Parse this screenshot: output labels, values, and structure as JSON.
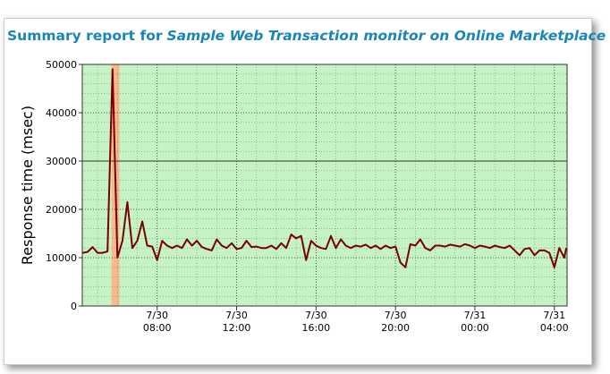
{
  "chart_data": {
    "type": "line",
    "title": [
      "Summary report for",
      "Sample Web Transaction monitor on Online Marketplace"
    ],
    "y_label": "Response time (msec)",
    "x": [
      4.25,
      4.5,
      4.75,
      5,
      5.25,
      5.5,
      5.75,
      6,
      6.25,
      6.5,
      6.75,
      7,
      7.25,
      7.5,
      7.75,
      8,
      8.25,
      8.5,
      8.75,
      9,
      9.25,
      9.5,
      9.75,
      10,
      10.25,
      10.5,
      10.75,
      11,
      11.25,
      11.5,
      11.75,
      12,
      12.25,
      12.5,
      12.75,
      13,
      13.25,
      13.5,
      13.75,
      14,
      14.25,
      14.5,
      14.75,
      15,
      15.25,
      15.5,
      15.75,
      16,
      16.25,
      16.5,
      16.75,
      17,
      17.25,
      17.5,
      17.75,
      18,
      18.25,
      18.5,
      18.75,
      19,
      19.25,
      19.5,
      19.75,
      20,
      20.25,
      20.5,
      20.75,
      21,
      21.25,
      21.5,
      21.75,
      22,
      22.25,
      22.5,
      22.75,
      23,
      23.25,
      23.5,
      23.75,
      24,
      24.25,
      24.5,
      24.75,
      25,
      25.25,
      25.5,
      25.75,
      26,
      26.25,
      26.5,
      26.75,
      27,
      27.25,
      27.5,
      27.75,
      28,
      28.25,
      28.5,
      28.6
    ],
    "series": [
      {
        "color": "#7a0000",
        "values": [
          11000,
          11200,
          12200,
          11000,
          11000,
          11300,
          49000,
          10000,
          13500,
          21500,
          12000,
          13500,
          17500,
          12500,
          12300,
          9500,
          13500,
          12500,
          12000,
          12500,
          12000,
          13800,
          12500,
          13500,
          12200,
          11800,
          11500,
          13800,
          12500,
          12000,
          13000,
          11800,
          12000,
          13500,
          12200,
          12300,
          12000,
          12000,
          12500,
          11800,
          13000,
          12000,
          14800,
          14000,
          14500,
          9500,
          13500,
          12500,
          12000,
          11800,
          14500,
          12000,
          13800,
          12500,
          12000,
          12500,
          12300,
          12700,
          12000,
          12500,
          11800,
          12500,
          12000,
          12300,
          9000,
          8000,
          12800,
          12500,
          13800,
          12000,
          11500,
          12500,
          12500,
          12300,
          12700,
          12500,
          12300,
          12800,
          12500,
          12000,
          12500,
          12300,
          12000,
          12500,
          12200,
          12000,
          12500,
          11500,
          10500,
          11800,
          12000,
          10500,
          11500,
          11500,
          11000,
          8000,
          12000,
          10000,
          12000
        ]
      }
    ],
    "xlim": [
      4.23,
      28.64
    ],
    "xticks": [
      {
        "value": 8,
        "label": "7/30\n08:00"
      },
      {
        "value": 12,
        "label": "7/30\n12:00"
      },
      {
        "value": 16,
        "label": "7/30\n16:00"
      },
      {
        "value": 20,
        "label": "7/30\n20:00"
      },
      {
        "value": 24,
        "label": "7/31\n00:00"
      },
      {
        "value": 28,
        "label": "7/31\n04:00"
      }
    ],
    "ylim": [
      0,
      50000
    ],
    "yticks": [
      0,
      10000,
      20000,
      30000,
      40000,
      50000
    ],
    "threshold": 30000,
    "shaded_range": [
      5.7,
      6.1
    ],
    "shaded_color": "#f9b98a",
    "background": "#c6f3c6",
    "grid": true
  }
}
